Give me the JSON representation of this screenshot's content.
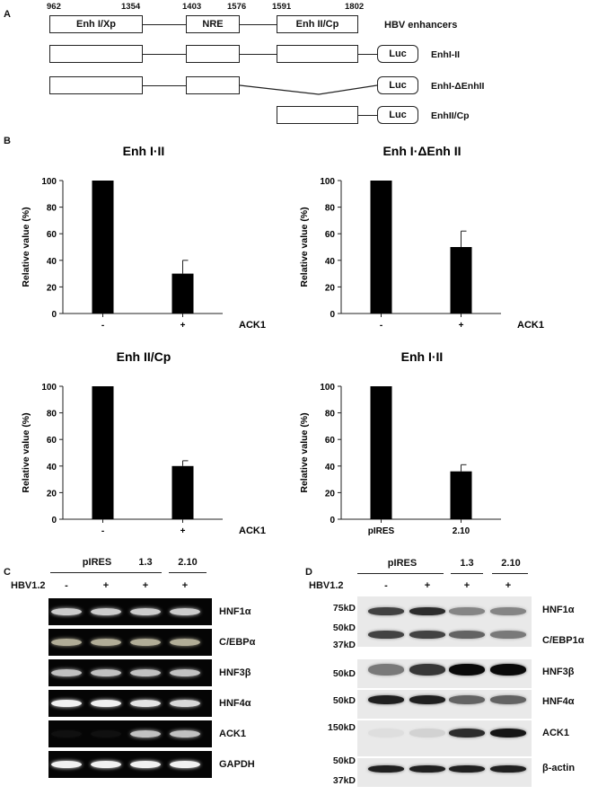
{
  "panel_a": {
    "letter": "A",
    "coords": [
      "962",
      "1354",
      "1403",
      "1576",
      "1591",
      "1802"
    ],
    "segments": [
      "Enh I/Xp",
      "NRE",
      "Enh II/Cp"
    ],
    "header_label": "HBV enhancers",
    "luc_label": "Luc",
    "constructs": [
      "EnhI-II",
      "EnhI-ΔEnhII",
      "EnhII/Cp"
    ]
  },
  "panel_b": {
    "letter": "B"
  },
  "chart_data": [
    {
      "type": "bar",
      "title": "Enh I·II",
      "ylabel": "Relative value (%)",
      "xlabel": "ACK1",
      "categories": [
        "-",
        "+"
      ],
      "values": [
        100,
        30
      ],
      "errors": [
        0,
        10
      ],
      "ylim": [
        0,
        100
      ],
      "yticks": [
        "0",
        "20",
        "40",
        "60",
        "80",
        "100"
      ]
    },
    {
      "type": "bar",
      "title": "Enh I·ΔEnh II",
      "ylabel": "Relative value (%)",
      "xlabel": "ACK1",
      "categories": [
        "-",
        "+"
      ],
      "values": [
        100,
        50
      ],
      "errors": [
        0,
        12
      ],
      "ylim": [
        0,
        100
      ],
      "yticks": [
        "0",
        "20",
        "40",
        "60",
        "80",
        "100"
      ]
    },
    {
      "type": "bar",
      "title": "Enh II/Cp",
      "ylabel": "Relative value (%)",
      "xlabel": "ACK1",
      "categories": [
        "-",
        "+"
      ],
      "values": [
        100,
        40
      ],
      "errors": [
        0,
        4
      ],
      "ylim": [
        0,
        100
      ],
      "yticks": [
        "0",
        "20",
        "40",
        "60",
        "80",
        "100"
      ]
    },
    {
      "type": "bar",
      "title": "Enh I·II",
      "ylabel": "Relative value (%)",
      "xlabel": "",
      "categories": [
        "pIRES",
        "2.10"
      ],
      "values": [
        100,
        36
      ],
      "errors": [
        0,
        5
      ],
      "ylim": [
        0,
        100
      ],
      "yticks": [
        "0",
        "20",
        "40",
        "60",
        "80",
        "100"
      ]
    }
  ],
  "panel_c": {
    "letter": "C",
    "groups": [
      "pIRES",
      "1.3",
      "2.10"
    ],
    "row_label": "HBV1.2",
    "lanes": [
      "-",
      "+",
      "+",
      "+"
    ],
    "genes": [
      "HNF1α",
      "C/EBPα",
      "HNF3β",
      "HNF4α",
      "ACK1",
      "GAPDH"
    ]
  },
  "panel_d": {
    "letter": "D",
    "groups": [
      "pIRES",
      "1.3",
      "2.10"
    ],
    "row_label": "HBV1.2",
    "lanes": [
      "-",
      "+",
      "+",
      "+"
    ],
    "proteins": [
      "HNF1α",
      "C/EBP1α",
      "HNF3β",
      "HNF4α",
      "ACK1",
      "β-actin"
    ],
    "markers": [
      "75kD",
      "50kD",
      "37kD",
      "50kD",
      "50kD",
      "150kD",
      "50kD",
      "37kD"
    ]
  }
}
